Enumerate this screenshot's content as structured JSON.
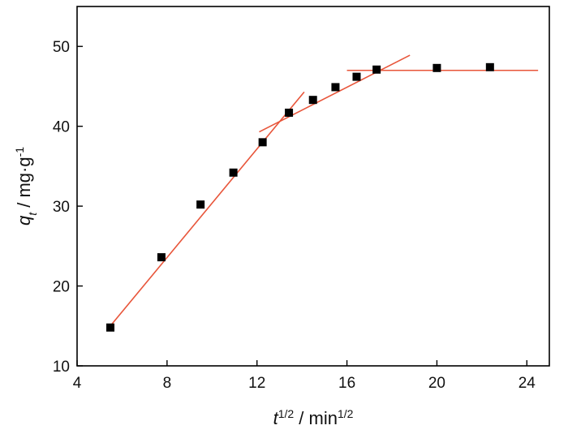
{
  "chart_data": {
    "type": "scatter",
    "title": "",
    "xlabel": {
      "base": "t",
      "sup": "1/2",
      "unit": " / min",
      "unit_sup": "1/2"
    },
    "ylabel": {
      "base": "q",
      "sub": "t",
      "unit": " / mg·g",
      "unit_sup": "-1"
    },
    "xlim": [
      4,
      25
    ],
    "ylim": [
      10,
      55
    ],
    "xticks": [
      4,
      8,
      12,
      16,
      20,
      24
    ],
    "yticks": [
      10,
      20,
      30,
      40,
      50
    ],
    "grid": false,
    "legend": "none",
    "colors": {
      "points": "#000000",
      "fit_lines": "#e8553a",
      "axes": "#000000"
    },
    "points": [
      {
        "x": 5.48,
        "y": 14.8
      },
      {
        "x": 7.75,
        "y": 23.6
      },
      {
        "x": 9.49,
        "y": 30.2
      },
      {
        "x": 10.95,
        "y": 34.2
      },
      {
        "x": 12.25,
        "y": 38.0
      },
      {
        "x": 13.42,
        "y": 41.7
      },
      {
        "x": 14.49,
        "y": 43.3
      },
      {
        "x": 15.49,
        "y": 44.9
      },
      {
        "x": 16.43,
        "y": 46.2
      },
      {
        "x": 17.32,
        "y": 47.1
      },
      {
        "x": 20.0,
        "y": 47.3
      },
      {
        "x": 22.36,
        "y": 47.4
      }
    ],
    "fit_lines": [
      {
        "x1": 5.48,
        "y1": 15.0,
        "x2": 14.1,
        "y2": 44.3
      },
      {
        "x1": 12.1,
        "y1": 39.3,
        "x2": 18.8,
        "y2": 48.9
      },
      {
        "x1": 16.0,
        "y1": 47.0,
        "x2": 24.5,
        "y2": 47.0
      }
    ]
  }
}
